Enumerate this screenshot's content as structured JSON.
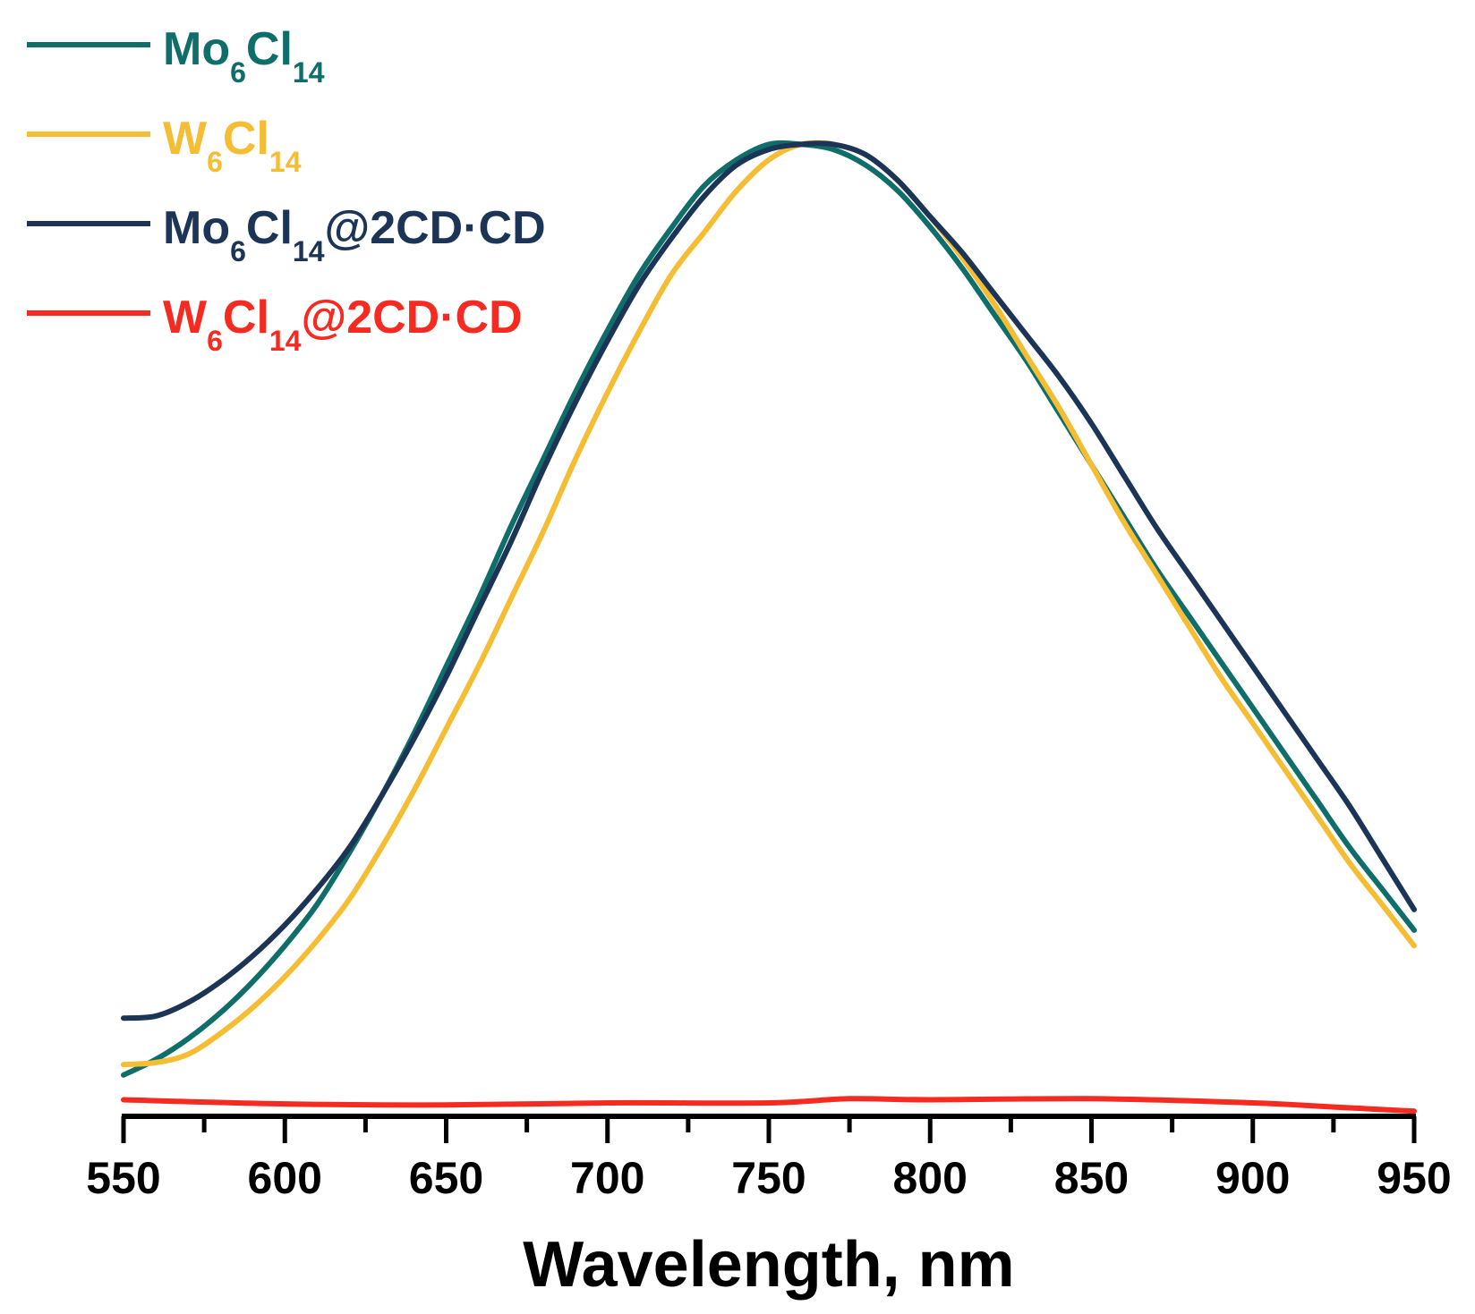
{
  "chart_data": {
    "type": "line",
    "title": "",
    "xlabel": "Wavelength, nm",
    "ylabel": "",
    "xlim": [
      550,
      950
    ],
    "ylim": [
      0,
      1.0
    ],
    "xticks_major": [
      550,
      600,
      650,
      700,
      750,
      800,
      850,
      900,
      950
    ],
    "xticks_minor": [
      575,
      625,
      675,
      725,
      775,
      825,
      875,
      925
    ],
    "yaxis_visible": false,
    "grid": false,
    "legend_position": "top-left",
    "series": [
      {
        "name": "Mo6Cl14",
        "legend": {
          "main1": "Mo",
          "sub1": "6",
          "main2": "Cl",
          "sub2": "14",
          "suffix": ""
        },
        "color": "#0f6e6a",
        "x": [
          550,
          560,
          570,
          580,
          590,
          600,
          610,
          620,
          630,
          640,
          650,
          660,
          670,
          680,
          690,
          700,
          710,
          720,
          730,
          740,
          750,
          760,
          770,
          780,
          790,
          800,
          810,
          820,
          830,
          840,
          850,
          860,
          870,
          880,
          890,
          900,
          910,
          920,
          930,
          940,
          950
        ],
        "y": [
          0.04,
          0.055,
          0.075,
          0.1,
          0.13,
          0.165,
          0.205,
          0.255,
          0.31,
          0.37,
          0.435,
          0.5,
          0.57,
          0.635,
          0.7,
          0.76,
          0.815,
          0.86,
          0.9,
          0.925,
          0.94,
          0.94,
          0.935,
          0.92,
          0.895,
          0.86,
          0.82,
          0.775,
          0.73,
          0.68,
          0.63,
          0.58,
          0.53,
          0.485,
          0.44,
          0.395,
          0.35,
          0.305,
          0.26,
          0.22,
          0.18
        ]
      },
      {
        "name": "W6Cl14",
        "legend": {
          "main1": "W",
          "sub1": "6",
          "main2": "Cl",
          "sub2": "14",
          "suffix": ""
        },
        "color": "#f5bd33",
        "x": [
          550,
          560,
          570,
          580,
          590,
          600,
          610,
          620,
          630,
          640,
          650,
          660,
          670,
          680,
          690,
          700,
          710,
          720,
          730,
          740,
          750,
          760,
          770,
          780,
          790,
          800,
          810,
          820,
          830,
          840,
          850,
          860,
          870,
          880,
          890,
          900,
          910,
          920,
          930,
          940,
          950
        ],
        "y": [
          0.05,
          0.052,
          0.06,
          0.08,
          0.105,
          0.135,
          0.17,
          0.21,
          0.26,
          0.315,
          0.375,
          0.435,
          0.5,
          0.565,
          0.635,
          0.7,
          0.76,
          0.815,
          0.855,
          0.895,
          0.925,
          0.94,
          0.94,
          0.93,
          0.905,
          0.87,
          0.83,
          0.785,
          0.735,
          0.685,
          0.63,
          0.575,
          0.525,
          0.475,
          0.425,
          0.38,
          0.335,
          0.29,
          0.245,
          0.205,
          0.165
        ]
      },
      {
        "name": "Mo6Cl14@2CD·CD",
        "legend": {
          "main1": "Mo",
          "sub1": "6",
          "main2": "Cl",
          "sub2": "14",
          "suffix": "@2CD·CD"
        },
        "color": "#1c3556",
        "x": [
          550,
          560,
          570,
          580,
          590,
          600,
          610,
          620,
          630,
          640,
          650,
          660,
          670,
          680,
          690,
          700,
          710,
          720,
          730,
          740,
          750,
          760,
          770,
          780,
          790,
          800,
          810,
          820,
          830,
          840,
          850,
          860,
          870,
          880,
          890,
          900,
          910,
          920,
          930,
          940,
          950
        ],
        "y": [
          0.095,
          0.097,
          0.11,
          0.13,
          0.155,
          0.185,
          0.22,
          0.26,
          0.31,
          0.365,
          0.425,
          0.49,
          0.555,
          0.625,
          0.69,
          0.75,
          0.805,
          0.85,
          0.89,
          0.92,
          0.935,
          0.94,
          0.94,
          0.93,
          0.905,
          0.87,
          0.835,
          0.795,
          0.755,
          0.715,
          0.67,
          0.62,
          0.57,
          0.525,
          0.48,
          0.435,
          0.39,
          0.345,
          0.3,
          0.25,
          0.2
        ]
      },
      {
        "name": "W6Cl14@2CD·CD",
        "legend": {
          "main1": "W",
          "sub1": "6",
          "main2": "Cl",
          "sub2": "14",
          "suffix": "@2CD·CD"
        },
        "color": "#f52a21",
        "x": [
          550,
          600,
          650,
          700,
          750,
          775,
          800,
          850,
          900,
          925,
          950
        ],
        "y": [
          0.016,
          0.012,
          0.011,
          0.013,
          0.013,
          0.017,
          0.016,
          0.017,
          0.013,
          0.009,
          0.005
        ]
      }
    ]
  }
}
